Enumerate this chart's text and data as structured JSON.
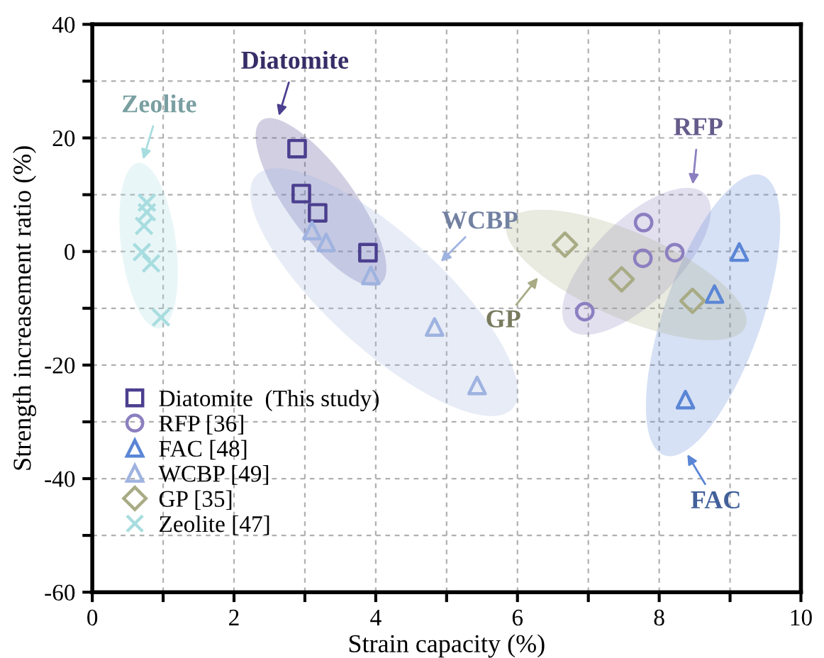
{
  "chart_data": {
    "type": "scatter",
    "xlabel": "Strain capacity (%)",
    "ylabel": "Strength increasement ratio (%)",
    "xlim": [
      0,
      10
    ],
    "ylim": [
      -60,
      40
    ],
    "xticks": [
      0,
      {
        "value": 1,
        "label": null
      },
      2,
      {
        "value": 3,
        "label": null
      },
      4,
      {
        "value": 5,
        "label": null
      },
      6,
      {
        "value": 7,
        "label": null
      },
      8,
      {
        "value": 9,
        "label": null
      },
      10
    ],
    "yticks": [
      -60,
      {
        "value": -50,
        "label": null
      },
      -40,
      {
        "value": -30,
        "label": null
      },
      -20,
      {
        "value": -10,
        "label": null
      },
      0,
      {
        "value": 10,
        "label": null
      },
      20,
      {
        "value": 30,
        "label": null
      },
      40
    ],
    "grid": true,
    "legend": "bottom left",
    "series": [
      {
        "name": "Diatomite  (This study)",
        "color": "#4b3f8f",
        "marker": "square",
        "x": [
          2.89,
          2.95,
          3.18,
          3.89
        ],
        "values": [
          18.1,
          10.2,
          6.8,
          -0.2
        ]
      },
      {
        "name": "RFP [36]",
        "color": "#8c7fc0",
        "marker": "circle",
        "x": [
          7.78,
          7.77,
          8.22,
          6.95
        ],
        "values": [
          5.1,
          -1.2,
          -0.2,
          -10.6
        ]
      },
      {
        "name": "FAC [48]",
        "color": "#5b86d6",
        "marker": "triangle",
        "x": [
          9.13,
          8.78,
          8.37
        ],
        "values": [
          -0.1,
          -7.5,
          -26.1
        ]
      },
      {
        "name": "WCBP [49]",
        "color": "#9fb3e0",
        "marker": "triangle",
        "x": [
          3.1,
          3.3,
          3.93,
          4.83,
          5.43
        ],
        "values": [
          3.7,
          1.6,
          -4.2,
          -13.3,
          -23.6
        ]
      },
      {
        "name": "GP [35]",
        "color": "#a8ab84",
        "marker": "diamond",
        "x": [
          6.67,
          7.47,
          8.47
        ],
        "values": [
          1.2,
          -4.9,
          -8.7
        ]
      },
      {
        "name": "Zeolite [47]",
        "color": "#a8dde0",
        "marker": "cross",
        "x": [
          0.77,
          0.77,
          0.73,
          0.7,
          0.83,
          0.97
        ],
        "values": [
          8.6,
          6.9,
          4.5,
          -0.1,
          -2.1,
          -11.6
        ]
      }
    ],
    "annotations": [
      "Diatomite",
      "RFP",
      "FAC",
      "WCBP",
      "GP",
      "Zeolite"
    ]
  }
}
